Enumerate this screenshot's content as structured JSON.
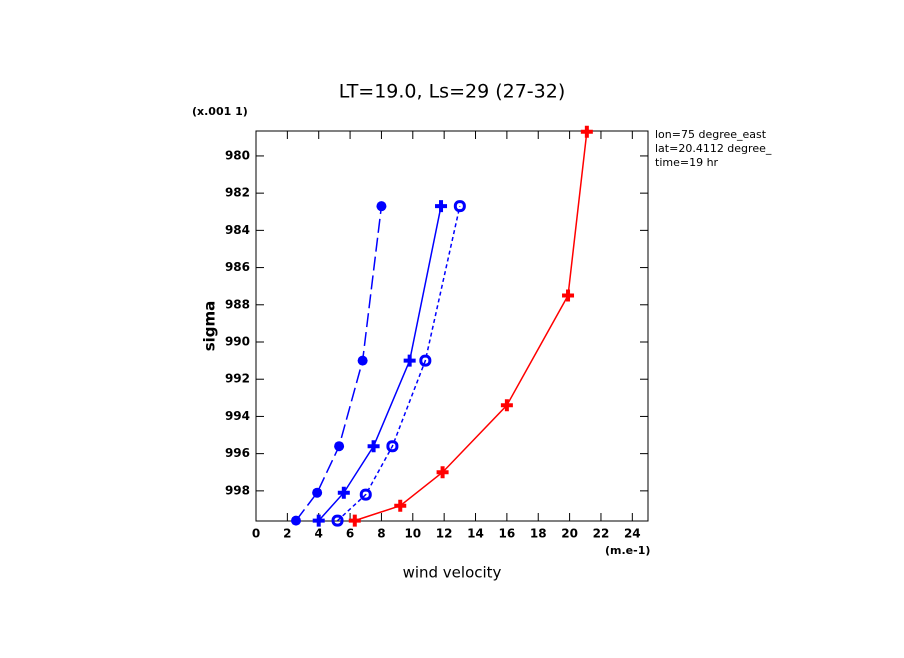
{
  "chart_data": {
    "type": "line",
    "title": "LT=19.0, Ls=29 (27-32)",
    "x_label": "wind velocity",
    "y_label": "sigma",
    "x_units": "(m.e-1)",
    "y_units": "(x.001 1)",
    "annotations": [
      "lon=75 degree_east",
      "lat=20.4112 degree_",
      "time=19 hr"
    ],
    "xlim": [
      0,
      25
    ],
    "xticks": [
      0,
      2,
      4,
      6,
      8,
      10,
      12,
      14,
      16,
      18,
      20,
      22,
      24
    ],
    "ylim": [
      978.66,
      999.62
    ],
    "y_inverted": true,
    "yticks": [
      980,
      982,
      984,
      986,
      988,
      990,
      992,
      994,
      996,
      998
    ],
    "series": [
      {
        "color": "#0000ff",
        "dash": "long",
        "marker": "dot",
        "x": [
          2.55,
          3.9,
          5.3,
          6.8,
          8.0
        ],
        "values": [
          999.6,
          998.1,
          995.6,
          991.0,
          982.7
        ]
      },
      {
        "color": "#0000ff",
        "dash": "solid",
        "marker": "plus",
        "x": [
          4.0,
          5.6,
          7.5,
          9.8,
          11.8
        ],
        "values": [
          999.6,
          998.1,
          995.6,
          991.0,
          982.7
        ]
      },
      {
        "color": "#0000ff",
        "dash": "short",
        "marker": "ring",
        "x": [
          5.2,
          7.0,
          8.7,
          10.8,
          13.0
        ],
        "values": [
          999.6,
          998.2,
          995.6,
          991.0,
          982.7
        ]
      },
      {
        "color": "#ff0000",
        "dash": "solid",
        "marker": "plus",
        "x": [
          6.3,
          9.2,
          11.9,
          16.0,
          19.9,
          21.1
        ],
        "values": [
          999.6,
          998.8,
          997.0,
          993.4,
          987.5,
          978.7
        ]
      }
    ]
  }
}
